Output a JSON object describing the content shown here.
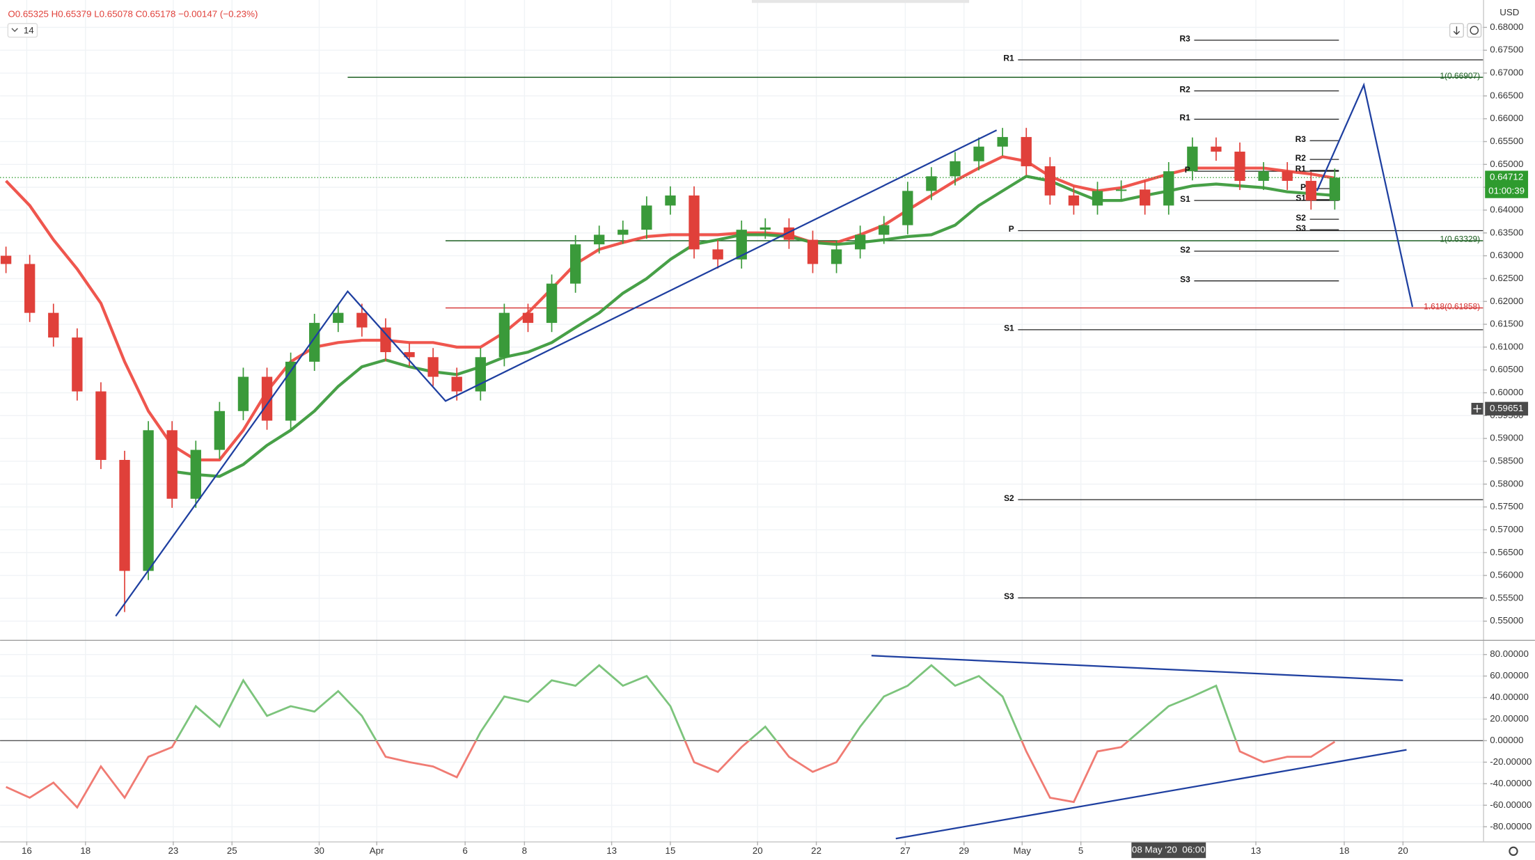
{
  "header": {
    "ohlc": "O0.65325 H0.65379 L0.65078 C0.65178 −0.00147 (−0.23%)",
    "interval": "14"
  },
  "chart_data": [
    {
      "type": "candlestick",
      "y_unit": "USD",
      "up_color": "#3a9a3a",
      "down_color": "#e0403a",
      "grid": true,
      "x": [
        1,
        5,
        9,
        13,
        17,
        21,
        25,
        29,
        33,
        37,
        41,
        45,
        49,
        53,
        57,
        61,
        65,
        69,
        73,
        77,
        81,
        85,
        89,
        93,
        97,
        101,
        105,
        109,
        113,
        117,
        121,
        125,
        129,
        133,
        137,
        141,
        145,
        149,
        153,
        157,
        161,
        165,
        169,
        173,
        177,
        181,
        185,
        189,
        193,
        197,
        201,
        205,
        209,
        213,
        217,
        221,
        225
      ],
      "open": [
        0.63,
        0.6282,
        0.6175,
        0.6121,
        0.6003,
        0.5853,
        0.561,
        0.5918,
        0.5768,
        0.5875,
        0.596,
        0.6035,
        0.5939,
        0.6068,
        0.6153,
        0.6175,
        0.6143,
        0.6089,
        0.6078,
        0.6035,
        0.6003,
        0.6078,
        0.6175,
        0.6153,
        0.6239,
        0.6325,
        0.6346,
        0.6357,
        0.641,
        0.6432,
        0.6314,
        0.6292,
        0.6357,
        0.6362,
        0.6335,
        0.6282,
        0.6314,
        0.6346,
        0.6367,
        0.6442,
        0.6474,
        0.6507,
        0.6539,
        0.656,
        0.6496,
        0.6432,
        0.641,
        0.6442,
        0.6445,
        0.641,
        0.6485,
        0.6539,
        0.6528,
        0.6464,
        0.6485,
        0.6464,
        0.6421
      ],
      "high": [
        0.632,
        0.6302,
        0.6195,
        0.6141,
        0.6023,
        0.5873,
        0.5938,
        0.5938,
        0.5895,
        0.598,
        0.6055,
        0.6055,
        0.6088,
        0.6173,
        0.6195,
        0.6195,
        0.6163,
        0.6109,
        0.6098,
        0.6055,
        0.6098,
        0.6195,
        0.6195,
        0.6259,
        0.6345,
        0.6366,
        0.6377,
        0.643,
        0.6452,
        0.6452,
        0.6334,
        0.6377,
        0.6382,
        0.6382,
        0.6355,
        0.6334,
        0.6366,
        0.6387,
        0.6462,
        0.6494,
        0.6527,
        0.6559,
        0.658,
        0.658,
        0.6516,
        0.6452,
        0.6462,
        0.6465,
        0.6465,
        0.6505,
        0.6559,
        0.6559,
        0.6548,
        0.6505,
        0.6505,
        0.6484,
        0.6491
      ],
      "low": [
        0.6262,
        0.6155,
        0.6101,
        0.5983,
        0.5833,
        0.552,
        0.559,
        0.5748,
        0.5748,
        0.5855,
        0.594,
        0.5919,
        0.5919,
        0.6048,
        0.6133,
        0.6123,
        0.6069,
        0.6058,
        0.6015,
        0.5983,
        0.5983,
        0.6058,
        0.6133,
        0.6133,
        0.6219,
        0.6305,
        0.6326,
        0.6337,
        0.639,
        0.6294,
        0.6272,
        0.6272,
        0.6337,
        0.6315,
        0.6262,
        0.6262,
        0.6294,
        0.6326,
        0.6347,
        0.6422,
        0.6454,
        0.6487,
        0.6519,
        0.6476,
        0.6412,
        0.639,
        0.639,
        0.6422,
        0.639,
        0.639,
        0.6465,
        0.6508,
        0.6444,
        0.6444,
        0.6444,
        0.6401,
        0.6401
      ],
      "close": [
        0.6282,
        0.6175,
        0.6121,
        0.6003,
        0.5853,
        0.561,
        0.5918,
        0.5768,
        0.5875,
        0.596,
        0.6035,
        0.5939,
        0.6068,
        0.6153,
        0.6175,
        0.6143,
        0.6089,
        0.6078,
        0.6035,
        0.6003,
        0.6078,
        0.6175,
        0.6153,
        0.6239,
        0.6325,
        0.6346,
        0.6357,
        0.641,
        0.6432,
        0.6314,
        0.6292,
        0.6357,
        0.6362,
        0.6335,
        0.6282,
        0.6314,
        0.6346,
        0.6367,
        0.6442,
        0.6474,
        0.6507,
        0.6539,
        0.656,
        0.6496,
        0.6432,
        0.641,
        0.6442,
        0.6445,
        0.641,
        0.6485,
        0.6539,
        0.6528,
        0.6464,
        0.6485,
        0.6464,
        0.6421,
        0.6471
      ],
      "moving_averages": [
        {
          "color": "#ee4d45",
          "values": [
            0.6464,
            0.641,
            0.6335,
            0.6271,
            0.6196,
            0.6068,
            0.596,
            0.5885,
            0.5853,
            0.5853,
            0.5918,
            0.6003,
            0.6068,
            0.61,
            0.611,
            0.6115,
            0.6115,
            0.611,
            0.611,
            0.61,
            0.61,
            0.6132,
            0.6175,
            0.6228,
            0.6282,
            0.6314,
            0.6329,
            0.6342,
            0.6346,
            0.6346,
            0.6346,
            0.635,
            0.635,
            0.6346,
            0.6329,
            0.6329,
            0.6346,
            0.6367,
            0.64,
            0.6432,
            0.6464,
            0.6492,
            0.6517,
            0.6507,
            0.6474,
            0.6453,
            0.6442,
            0.6449,
            0.6464,
            0.6479,
            0.6492,
            0.6492,
            0.6492,
            0.6492,
            0.6485,
            0.6479,
            0.647
          ]
        },
        {
          "color": "#3d9b3d",
          "values": [
            null,
            null,
            null,
            null,
            null,
            null,
            null,
            0.5828,
            0.5821,
            0.5817,
            0.5843,
            0.5885,
            0.5918,
            0.596,
            0.6014,
            0.6057,
            0.6072,
            0.6057,
            0.6046,
            0.604,
            0.6057,
            0.6078,
            0.6089,
            0.611,
            0.6143,
            0.6175,
            0.6218,
            0.625,
            0.6292,
            0.6325,
            0.6335,
            0.6346,
            0.6346,
            0.6342,
            0.6329,
            0.6325,
            0.6329,
            0.6335,
            0.6342,
            0.6346,
            0.6367,
            0.641,
            0.6442,
            0.6474,
            0.6464,
            0.6442,
            0.6421,
            0.6421,
            0.6432,
            0.6442,
            0.6453,
            0.6457,
            0.6453,
            0.6449,
            0.644,
            0.6436,
            0.6432
          ]
        }
      ],
      "levels": [
        {
          "label": "R3",
          "value": 0.6772,
          "x": [
            201.3,
            225.7
          ]
        },
        {
          "label": "R1",
          "value": 0.6729,
          "x": [
            171.6,
            250
          ]
        },
        {
          "label": "R2",
          "value": 0.6661,
          "x": [
            201.3,
            225.7
          ]
        },
        {
          "label": "R1",
          "value": 0.6599,
          "x": [
            201.3,
            225.7
          ]
        },
        {
          "label": "P",
          "value": 0.6485,
          "x": [
            201.3,
            225.7
          ]
        },
        {
          "label": "S1",
          "value": 0.6421,
          "x": [
            201.3,
            225.7
          ]
        },
        {
          "label": "S2",
          "value": 0.631,
          "x": [
            201.3,
            225.7
          ]
        },
        {
          "label": "S3",
          "value": 0.6245,
          "x": [
            201.3,
            225.7
          ]
        },
        {
          "label": "P",
          "value": 0.6355,
          "x": [
            171.6,
            250
          ]
        },
        {
          "label": "S1",
          "value": 0.6138,
          "x": [
            171.6,
            250
          ]
        },
        {
          "label": "S2",
          "value": 0.5766,
          "x": [
            171.6,
            250
          ]
        },
        {
          "label": "S3",
          "value": 0.5551,
          "x": [
            171.6,
            250
          ]
        },
        {
          "label": "R3",
          "value": 0.6552,
          "x": [
            220.8,
            225.7
          ]
        },
        {
          "label": "R2",
          "value": 0.6511,
          "x": [
            220.8,
            225.7
          ]
        },
        {
          "label": "R1",
          "value": 0.6487,
          "x": [
            220.8,
            225.7
          ]
        },
        {
          "label": "P",
          "value": 0.6447,
          "x": [
            220.8,
            225.7
          ]
        },
        {
          "label": "S1",
          "value": 0.6423,
          "x": [
            220.8,
            225.7
          ]
        },
        {
          "label": "S2",
          "value": 0.638,
          "x": [
            220.8,
            225.7
          ]
        },
        {
          "label": "S3",
          "value": 0.6357,
          "x": [
            220.8,
            225.7
          ]
        }
      ],
      "fib_levels": [
        {
          "label": "1(0.66907)",
          "value": 0.66907,
          "color": "#1b5e20",
          "x": [
            58.6,
            250
          ]
        },
        {
          "label": "1(0.63329)",
          "value": 0.63329,
          "color": "#1b5e20",
          "x": [
            75.1,
            250
          ]
        },
        {
          "label": "1.618(0.61858)",
          "value": 0.61858,
          "color": "#d32f2f",
          "x": [
            75.1,
            250
          ]
        }
      ],
      "drawings": [
        {
          "color": "#1e3fa0",
          "x": [
            19.5,
            58.6,
            75.1,
            168
          ],
          "y": [
            0.5511,
            0.6222,
            0.5982,
            0.6575
          ]
        },
        {
          "color": "#1e3fa0",
          "x": [
            222,
            229.9,
            238.1
          ],
          "y": [
            0.6442,
            0.6674,
            0.6188
          ]
        }
      ],
      "last_price": 0.64712,
      "last_price_color": "#2e9b2e",
      "countdown": "01:00:39",
      "crosshair": {
        "y": 0.59651,
        "x": 197,
        "x_label": "08 May '20  06:00"
      },
      "xlim": [
        0,
        250
      ],
      "xticks": [
        {
          "value": 4.5,
          "label": "16"
        },
        {
          "value": 14.4,
          "label": "18"
        },
        {
          "value": 29.2,
          "label": "23"
        },
        {
          "value": 39.1,
          "label": "25"
        },
        {
          "value": 53.8,
          "label": "30"
        },
        {
          "value": 63.5,
          "label": "Apr"
        },
        {
          "value": 78.4,
          "label": "6"
        },
        {
          "value": 88.4,
          "label": "8"
        },
        {
          "value": 103.1,
          "label": "13"
        },
        {
          "value": 113,
          "label": "15"
        },
        {
          "value": 127.7,
          "label": "20"
        },
        {
          "value": 137.6,
          "label": "22"
        },
        {
          "value": 152.6,
          "label": "27"
        },
        {
          "value": 162.5,
          "label": "29"
        },
        {
          "value": 172.3,
          "label": "May"
        },
        {
          "value": 182.2,
          "label": "5"
        },
        {
          "value": 211.7,
          "label": "13"
        },
        {
          "value": 226.6,
          "label": "18"
        },
        {
          "value": 236.5,
          "label": "20"
        }
      ],
      "ylim": [
        0.5459,
        0.686
      ],
      "yticks": [
        {
          "value": 0.55,
          "label": "0.55000"
        },
        {
          "value": 0.555,
          "label": "0.55500"
        },
        {
          "value": 0.56,
          "label": "0.56000"
        },
        {
          "value": 0.565,
          "label": "0.56500"
        },
        {
          "value": 0.57,
          "label": "0.57000"
        },
        {
          "value": 0.575,
          "label": "0.57500"
        },
        {
          "value": 0.58,
          "label": "0.58000"
        },
        {
          "value": 0.585,
          "label": "0.58500"
        },
        {
          "value": 0.59,
          "label": "0.59000"
        },
        {
          "value": 0.595,
          "label": "0.59500"
        },
        {
          "value": 0.6,
          "label": "0.60000"
        },
        {
          "value": 0.605,
          "label": "0.60500"
        },
        {
          "value": 0.61,
          "label": "0.61000"
        },
        {
          "value": 0.615,
          "label": "0.61500"
        },
        {
          "value": 0.62,
          "label": "0.62000"
        },
        {
          "value": 0.625,
          "label": "0.62500"
        },
        {
          "value": 0.63,
          "label": "0.63000"
        },
        {
          "value": 0.635,
          "label": "0.63500"
        },
        {
          "value": 0.64,
          "label": "0.64000"
        },
        {
          "value": 0.645,
          "label": "0.64500"
        },
        {
          "value": 0.65,
          "label": "0.65000"
        },
        {
          "value": 0.655,
          "label": "0.65500"
        },
        {
          "value": 0.66,
          "label": "0.66000"
        },
        {
          "value": 0.665,
          "label": "0.66500"
        },
        {
          "value": 0.67,
          "label": "0.67000"
        },
        {
          "value": 0.675,
          "label": "0.67500"
        },
        {
          "value": 0.68,
          "label": "0.68000"
        }
      ]
    },
    {
      "type": "line",
      "up_color": "#7cc47c",
      "down_color": "#f07b73",
      "zero_color": "#555555",
      "grid": true,
      "x": [
        1,
        5,
        9,
        13,
        17,
        21,
        25,
        29,
        33,
        37,
        41,
        45,
        49,
        53,
        57,
        61,
        65,
        69,
        73,
        77,
        81,
        85,
        89,
        93,
        97,
        101,
        105,
        109,
        113,
        117,
        121,
        125,
        129,
        133,
        137,
        141,
        145,
        149,
        153,
        157,
        161,
        165,
        169,
        173,
        177,
        181,
        185,
        189,
        193,
        197,
        201,
        205,
        209,
        213,
        217,
        221,
        225
      ],
      "values": [
        -43,
        -53,
        -39,
        -62,
        -24,
        -53,
        -15,
        -6,
        32,
        13,
        56,
        23,
        32,
        27,
        46,
        23,
        -15,
        -20,
        -24,
        -34,
        8,
        41,
        36,
        56,
        51,
        70,
        51,
        60,
        32,
        -20,
        -29,
        -6,
        13,
        -15,
        -29,
        -20,
        13,
        41,
        51,
        70,
        51,
        60,
        41,
        -10,
        -53,
        -57,
        -10,
        -6,
        13,
        32,
        41,
        51,
        -10,
        -20,
        -15,
        -15,
        -1
      ],
      "drawings": [
        {
          "color": "#1e3fa0",
          "x": [
            146.9,
            236.5
          ],
          "y": [
            79,
            56
          ]
        },
        {
          "color": "#1e3fa0",
          "x": [
            151,
            237.1
          ],
          "y": [
            -91,
            -8.5
          ]
        }
      ],
      "xlim": [
        0,
        250
      ],
      "ylim": [
        -93.6,
        92.7
      ],
      "yticks": [
        {
          "value": -80,
          "label": "-80.00000"
        },
        {
          "value": -60,
          "label": "-60.00000"
        },
        {
          "value": -40,
          "label": "-40.00000"
        },
        {
          "value": -20,
          "label": "-20.00000"
        },
        {
          "value": 0,
          "label": "0.00000"
        },
        {
          "value": 20,
          "label": "20.00000"
        },
        {
          "value": 40,
          "label": "40.00000"
        },
        {
          "value": 60,
          "label": "60.00000"
        },
        {
          "value": 80,
          "label": "80.00000"
        }
      ]
    }
  ]
}
